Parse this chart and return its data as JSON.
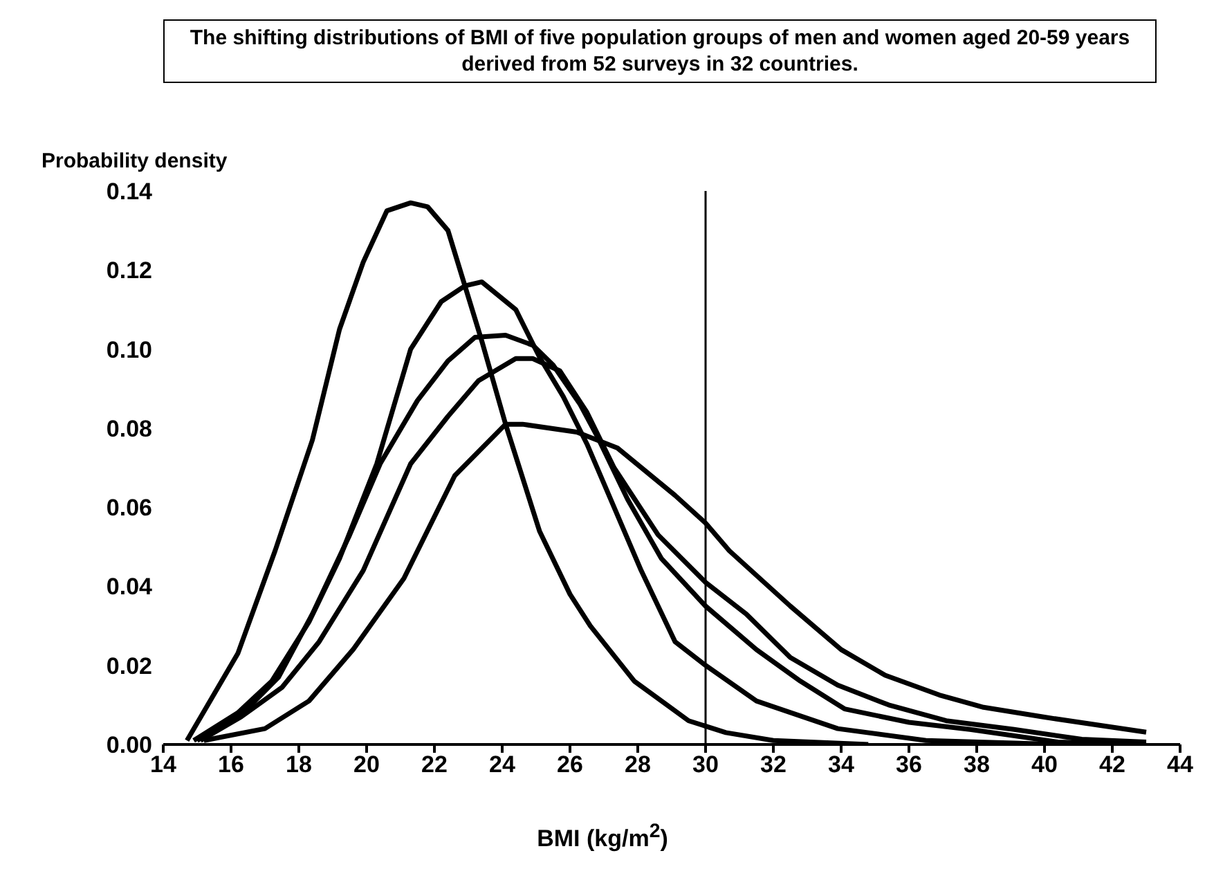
{
  "chart_data": {
    "type": "line",
    "title": "The shifting distributions of BMI of five population groups of men and women aged 20-59 years derived from 52 surveys in 32 countries.",
    "xlabel": "BMI (kg/m$^{2}$)",
    "ylabel": "Probability density",
    "xlim": [
      14,
      44
    ],
    "xticks": [
      14,
      16,
      18,
      20,
      22,
      24,
      26,
      28,
      30,
      32,
      34,
      36,
      38,
      40,
      42,
      44
    ],
    "ylim": [
      0,
      0.14
    ],
    "yticks": [
      {
        "value": 0,
        "label": "0.00"
      },
      {
        "value": 0.02,
        "label": "0.02"
      },
      {
        "value": 0.04,
        "label": "0.04"
      },
      {
        "value": 0.06,
        "label": "0.06"
      },
      {
        "value": 0.08,
        "label": "0.08"
      },
      {
        "value": 0.1,
        "label": "0.10"
      },
      {
        "value": 0.12,
        "label": "0.12"
      },
      {
        "value": 0.14,
        "label": "0.14"
      }
    ],
    "grid": false,
    "legend": false,
    "marker": "none",
    "line_style": "solid",
    "ref_lines": [
      {
        "axis": "x",
        "value": 30,
        "color": "#000000"
      }
    ],
    "series": [
      {
        "color": "#000000",
        "x": [
          14.7,
          16.2,
          17.3,
          18.4,
          19.2,
          19.9,
          20.6,
          21.3,
          21.8,
          22.4,
          22.9,
          23.4,
          24.1,
          25.1,
          26,
          26.6,
          27.9,
          29.5,
          30.6,
          32,
          34.8
        ],
        "values": [
          0.001,
          0.023,
          0.049,
          0.077,
          0.105,
          0.122,
          0.135,
          0.137,
          0.136,
          0.13,
          0.116,
          0.102,
          0.081,
          0.054,
          0.038,
          0.03,
          0.016,
          0.006,
          0.003,
          0.001,
          0
        ]
      },
      {
        "color": "#000000",
        "x": [
          14.9,
          16.2,
          17.2,
          18.3,
          19.2,
          20.3,
          21.3,
          22.2,
          22.9,
          23.4,
          24.4,
          25.1,
          25.8,
          26.5,
          27.2,
          28.1,
          29.1,
          30,
          31.5,
          33.9,
          36.5,
          40.5
        ],
        "values": [
          0.001,
          0.008,
          0.016,
          0.031,
          0.047,
          0.071,
          0.1,
          0.112,
          0.116,
          0.117,
          0.11,
          0.098,
          0.088,
          0.076,
          0.062,
          0.044,
          0.026,
          0.02,
          0.011,
          0.004,
          0.001,
          0
        ]
      },
      {
        "color": "#000000",
        "x": [
          15,
          16.3,
          17.4,
          18.4,
          19.5,
          20.4,
          21.5,
          22.4,
          23.2,
          24.1,
          24.9,
          25.5,
          26.3,
          26.8,
          27.7,
          28.7,
          30,
          31.5,
          32.8,
          34.1,
          36,
          37.8,
          40.4,
          43
        ],
        "values": [
          0.001,
          0.0075,
          0.017,
          0.033,
          0.053,
          0.071,
          0.087,
          0.097,
          0.103,
          0.1035,
          0.101,
          0.096,
          0.086,
          0.078,
          0.062,
          0.047,
          0.035,
          0.024,
          0.016,
          0.009,
          0.0056,
          0.0038,
          0.0006,
          0
        ]
      },
      {
        "color": "#000000",
        "x": [
          15.1,
          16.3,
          17.5,
          18.6,
          19.9,
          21.3,
          22.4,
          23.3,
          24.4,
          24.9,
          25.7,
          26.5,
          27.3,
          28.6,
          30,
          31.2,
          32.5,
          33.9,
          35.4,
          37.1,
          39.1,
          41.1,
          43
        ],
        "values": [
          0.001,
          0.007,
          0.0144,
          0.026,
          0.044,
          0.071,
          0.083,
          0.092,
          0.0976,
          0.0976,
          0.0945,
          0.084,
          0.07,
          0.053,
          0.041,
          0.033,
          0.022,
          0.015,
          0.01,
          0.006,
          0.0038,
          0.0013,
          0.0006
        ]
      },
      {
        "color": "#000000",
        "x": [
          15.2,
          17,
          18.3,
          19.6,
          21.1,
          22.6,
          24.1,
          24.6,
          26.2,
          27.4,
          29.1,
          30,
          30.7,
          32.5,
          34,
          35.3,
          36.9,
          38.2,
          40,
          43
        ],
        "values": [
          0.001,
          0.004,
          0.011,
          0.024,
          0.042,
          0.068,
          0.081,
          0.081,
          0.079,
          0.075,
          0.063,
          0.056,
          0.049,
          0.035,
          0.024,
          0.0175,
          0.0125,
          0.0094,
          0.0069,
          0.0031
        ]
      }
    ]
  }
}
